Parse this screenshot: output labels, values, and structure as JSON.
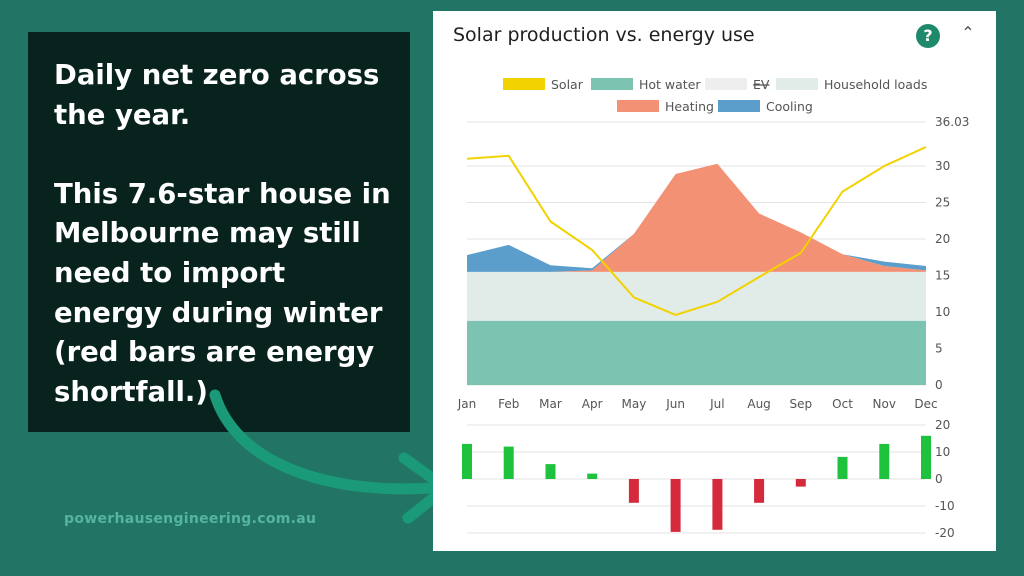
{
  "callout": {
    "line1": "Daily net zero across the year.",
    "line2": "This 7.6-star house in Melbourne may still need to import energy during winter (red bars are energy shortfall.)"
  },
  "website": "powerhausengineering.com.au",
  "panel": {
    "title": "Solar production vs. energy use"
  },
  "icons": {
    "help": "help-icon",
    "collapse": "chevron-up-icon"
  },
  "chart_data": [
    {
      "type": "area",
      "title": "Solar production vs. energy use",
      "categories": [
        "Jan",
        "Feb",
        "Mar",
        "Apr",
        "May",
        "Jun",
        "Jul",
        "Aug",
        "Sep",
        "Oct",
        "Nov",
        "Dec"
      ],
      "ylim": [
        0,
        36.03
      ],
      "yticks": [
        0,
        5,
        10,
        15,
        20,
        25,
        30
      ],
      "ymax_label": "36.03",
      "legend": [
        {
          "name": "Solar",
          "color": "#f2d200"
        },
        {
          "name": "Hot water",
          "color": "#7cc3b1"
        },
        {
          "name": "EV",
          "color": "#eeeeee",
          "strikethrough": true
        },
        {
          "name": "Household loads",
          "color": "#e1ebe8"
        },
        {
          "name": "Heating",
          "color": "#f39175"
        },
        {
          "name": "Cooling",
          "color": "#5b9ecb"
        }
      ],
      "stacked_series": [
        {
          "name": "Hot water",
          "color": "#7cc3b1",
          "values": [
            8.8,
            8.8,
            8.8,
            8.8,
            8.8,
            8.8,
            8.8,
            8.8,
            8.8,
            8.8,
            8.8,
            8.8
          ]
        },
        {
          "name": "Household loads",
          "color": "#e1ebe8",
          "values": [
            6.7,
            6.7,
            6.7,
            6.7,
            6.7,
            6.7,
            6.7,
            6.7,
            6.7,
            6.7,
            6.7,
            6.7
          ]
        },
        {
          "name": "Heating",
          "color": "#f39175",
          "values": [
            0,
            0,
            0,
            0.2,
            5.2,
            13.4,
            14.8,
            8.0,
            5.4,
            2.4,
            0.8,
            0.2
          ]
        },
        {
          "name": "Cooling",
          "color": "#5b9ecb",
          "values": [
            2.3,
            3.7,
            0.9,
            0.3,
            0,
            0,
            0,
            0,
            0,
            0,
            0.6,
            0.6
          ]
        }
      ],
      "line_series": {
        "name": "Solar",
        "color": "#f2d200",
        "values": [
          31.0,
          31.4,
          22.4,
          18.5,
          12.0,
          9.6,
          11.4,
          14.8,
          18.1,
          26.5,
          30.0,
          32.6
        ]
      }
    },
    {
      "type": "bar",
      "categories": [
        "Jan",
        "Feb",
        "Mar",
        "Apr",
        "May",
        "Jun",
        "Jul",
        "Aug",
        "Sep",
        "Oct",
        "Nov",
        "Dec"
      ],
      "ylim": [
        -20,
        20
      ],
      "yticks": [
        20,
        10,
        0,
        -10,
        -20
      ],
      "positive_color": "#1fc23c",
      "negative_color": "#d52a3c",
      "values": [
        13.0,
        12.0,
        5.5,
        2.0,
        -8.8,
        -19.6,
        -18.8,
        -8.8,
        -2.8,
        8.2,
        13.0,
        16.0
      ]
    }
  ],
  "colors": {
    "background": "#227565",
    "callout_bg": "#08231e",
    "arrow": "#1a9a78",
    "website": "#55b49f"
  }
}
